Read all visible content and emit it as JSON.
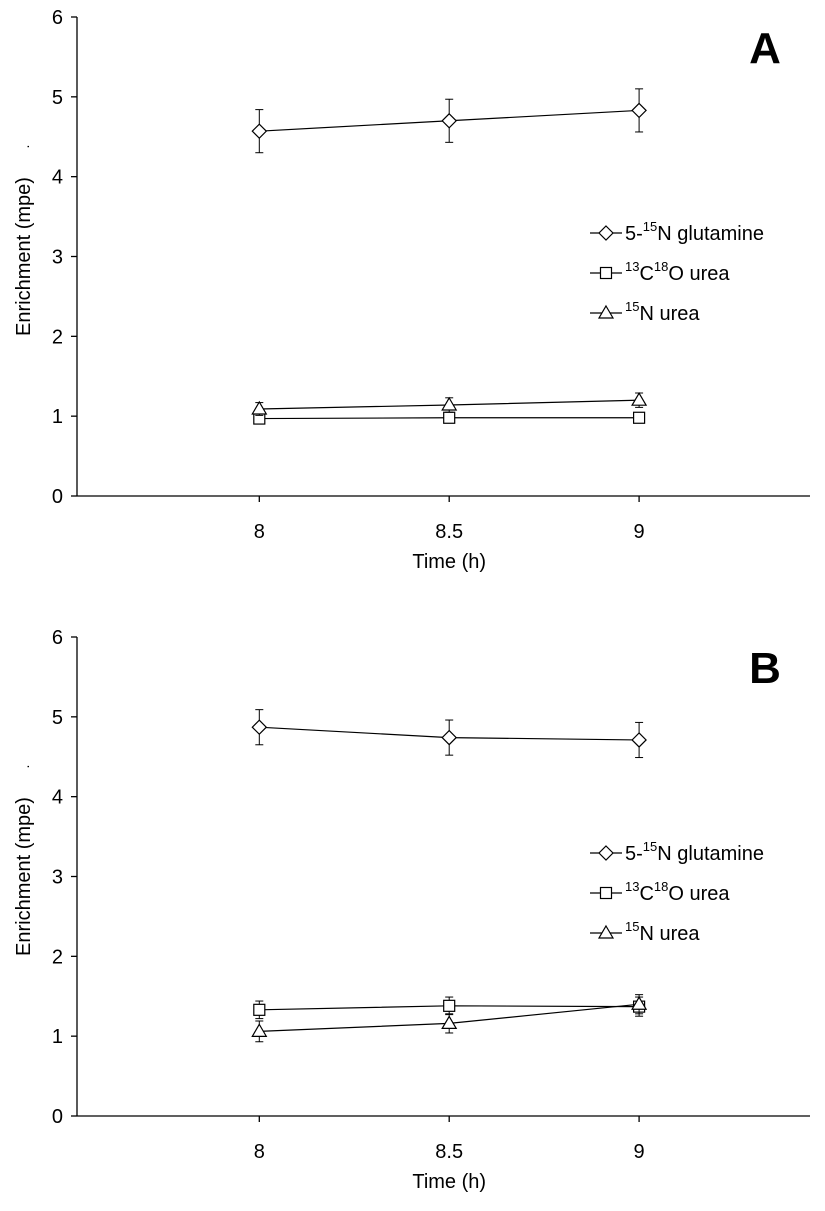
{
  "chart_data": [
    {
      "type": "line",
      "panel_label": "A",
      "x": [
        8,
        8.5,
        9
      ],
      "xticks": [
        "8",
        "8.5",
        "9"
      ],
      "ylim": [
        0,
        6
      ],
      "yticks": [
        "0",
        "1",
        "2",
        "3",
        "4",
        "5",
        "6"
      ],
      "xlabel": "Time (h)",
      "ylabel": "Enrichment (mpe)",
      "ylabel_suffix": ".",
      "grid": false,
      "legend_position": "right",
      "series": [
        {
          "name": "5-15N glutamine",
          "legend_pre": "5-",
          "sup1": "15",
          "mid": "N glutamine",
          "sup2": "",
          "post": "",
          "marker": "diamond",
          "values": [
            4.57,
            4.7,
            4.83
          ],
          "errors": [
            0.27,
            0.27,
            0.27
          ]
        },
        {
          "name": "13C18O urea",
          "legend_pre": "",
          "sup1": "13",
          "mid": "C",
          "sup2": "18",
          "post": "O urea",
          "marker": "square",
          "values": [
            0.97,
            0.98,
            0.98
          ],
          "errors": [
            0.03,
            0.04,
            0.04
          ]
        },
        {
          "name": "15N urea",
          "legend_pre": "",
          "sup1": "15",
          "mid": "N urea",
          "sup2": "",
          "post": "",
          "marker": "triangle",
          "values": [
            1.09,
            1.14,
            1.2
          ],
          "errors": [
            0.08,
            0.09,
            0.09
          ]
        }
      ]
    },
    {
      "type": "line",
      "panel_label": "B",
      "x": [
        8,
        8.5,
        9
      ],
      "xticks": [
        "8",
        "8.5",
        "9"
      ],
      "ylim": [
        0,
        6
      ],
      "yticks": [
        "0",
        "1",
        "2",
        "3",
        "4",
        "5",
        "6"
      ],
      "xlabel": "Time (h)",
      "ylabel": "Enrichment (mpe)",
      "ylabel_suffix": ".",
      "grid": false,
      "legend_position": "right",
      "series": [
        {
          "name": "5-15N glutamine",
          "legend_pre": "5-",
          "sup1": "15",
          "mid": "N glutamine",
          "sup2": "",
          "post": "",
          "marker": "diamond",
          "values": [
            4.87,
            4.74,
            4.71
          ],
          "errors": [
            0.22,
            0.22,
            0.22
          ]
        },
        {
          "name": "13C18O urea",
          "legend_pre": "",
          "sup1": "13",
          "mid": "C",
          "sup2": "18",
          "post": "O urea",
          "marker": "square",
          "values": [
            1.33,
            1.38,
            1.37
          ],
          "errors": [
            0.11,
            0.11,
            0.12
          ]
        },
        {
          "name": "15N urea",
          "legend_pre": "",
          "sup1": "15",
          "mid": "N urea",
          "sup2": "",
          "post": "",
          "marker": "triangle",
          "values": [
            1.06,
            1.16,
            1.4
          ],
          "errors": [
            0.13,
            0.12,
            0.12
          ]
        }
      ]
    }
  ]
}
